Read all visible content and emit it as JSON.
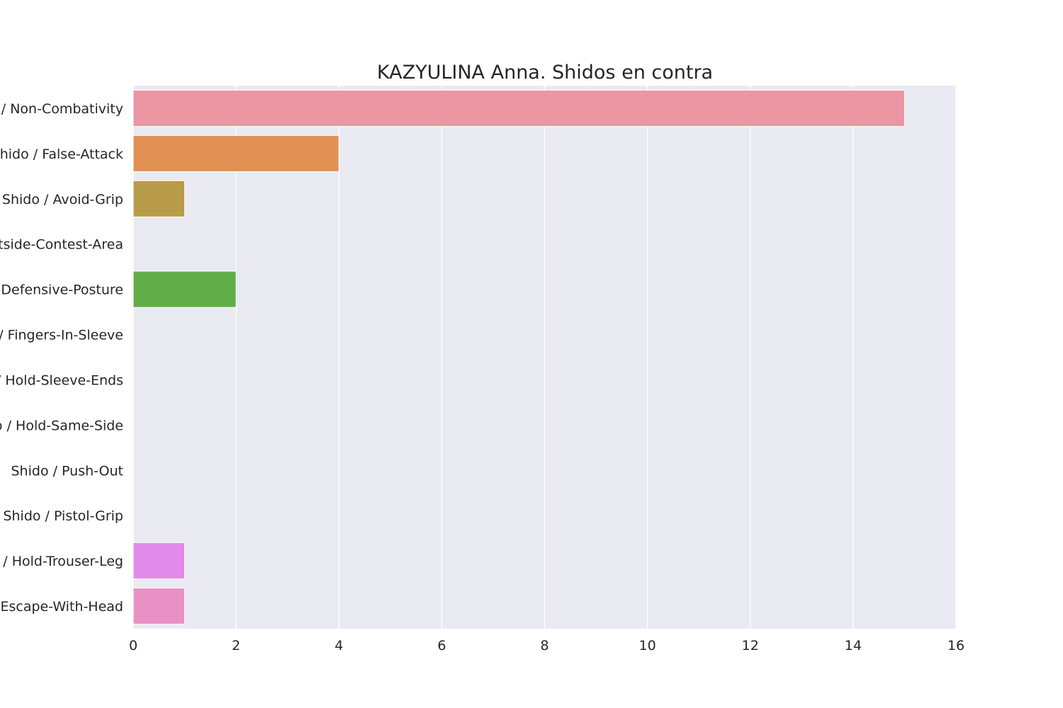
{
  "chart_data": {
    "type": "bar",
    "orientation": "horizontal",
    "title": "KAZYULINA Anna. Shidos en contra",
    "xlabel": "",
    "ylabel": "",
    "xlim": [
      0,
      16
    ],
    "xticks": [
      "0",
      "2",
      "4",
      "6",
      "8",
      "10",
      "12",
      "14",
      "16"
    ],
    "grid": true,
    "categories": [
      "Shido / Non-Combativity",
      "Shido / False-Attack",
      "Shido / Avoid-Grip",
      "Shido / Outside-Contest-Area",
      "Shido / Defensive-Posture",
      "Shido / Fingers-In-Sleeve",
      "Shido / Hold-Sleeve-Ends",
      "Shido / Hold-Same-Side",
      "Shido / Push-Out",
      "Shido / Pistol-Grip",
      "Shido / Hold-Trouser-Leg",
      "Shido / Escape-With-Head"
    ],
    "values": [
      15,
      4,
      1,
      0,
      2,
      0,
      0,
      0,
      0,
      0,
      1,
      1
    ],
    "colors": [
      "#ea96a3",
      "#e19153",
      "#b89c49",
      "#8ea849",
      "#61ad48",
      "#4fb08d",
      "#4fb1a5",
      "#56aebe",
      "#6ca6e0",
      "#a58ff0",
      "#e18ae9",
      "#e991c5"
    ],
    "plot_background": "#eaeaf2",
    "grid_color": "#ffffff"
  }
}
